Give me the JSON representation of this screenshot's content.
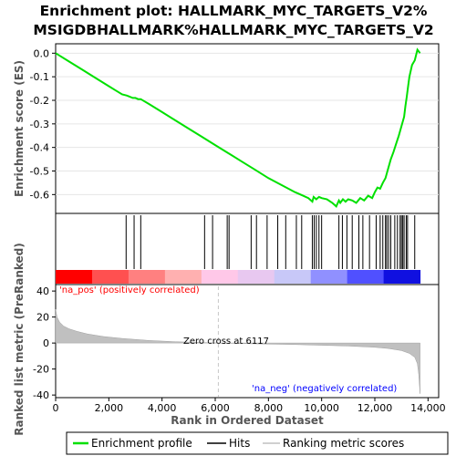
{
  "chart_data": {
    "type": "line",
    "title_line1": "Enrichment plot: HALLMARK_MYC_TARGETS_V2%",
    "title_line2": "MSIGDBHALLMARK%HALLMARK_MYC_TARGETS_V2",
    "top_panel": {
      "ylabel": "Enrichment score (ES)",
      "ylim": [
        -0.68,
        0.04
      ],
      "yticks": [
        "0.0",
        "-0.1",
        "-0.2",
        "-0.3",
        "-0.4",
        "-0.5",
        "-0.6"
      ],
      "ytick_values": [
        0.0,
        -0.1,
        -0.2,
        -0.3,
        -0.4,
        -0.5,
        -0.6
      ],
      "series": [
        {
          "name": "Enrichment profile",
          "color": "#00e000",
          "x": [
            0,
            500,
            1000,
            1500,
            2000,
            2500,
            2680,
            2900,
            3000,
            3100,
            3200,
            3500,
            4000,
            4500,
            5000,
            5500,
            6000,
            6500,
            7000,
            7500,
            8000,
            8500,
            9000,
            9300,
            9500,
            9650,
            9700,
            9800,
            9900,
            10000,
            10200,
            10400,
            10550,
            10650,
            10700,
            10800,
            10900,
            11000,
            11150,
            11300,
            11450,
            11600,
            11750,
            11900,
            12000,
            12100,
            12200,
            12300,
            12400,
            12500,
            12600,
            12700,
            12800,
            12900,
            13000,
            13100,
            13150,
            13200,
            13250,
            13300,
            13400,
            13500,
            13600,
            13700
          ],
          "y": [
            0.0,
            -0.035,
            -0.07,
            -0.105,
            -0.14,
            -0.175,
            -0.18,
            -0.19,
            -0.19,
            -0.195,
            -0.195,
            -0.215,
            -0.25,
            -0.285,
            -0.32,
            -0.355,
            -0.39,
            -0.425,
            -0.46,
            -0.495,
            -0.53,
            -0.56,
            -0.59,
            -0.605,
            -0.615,
            -0.63,
            -0.61,
            -0.62,
            -0.61,
            -0.615,
            -0.62,
            -0.635,
            -0.65,
            -0.625,
            -0.635,
            -0.62,
            -0.63,
            -0.62,
            -0.625,
            -0.635,
            -0.615,
            -0.625,
            -0.605,
            -0.615,
            -0.59,
            -0.57,
            -0.575,
            -0.55,
            -0.53,
            -0.49,
            -0.45,
            -0.42,
            -0.385,
            -0.35,
            -0.31,
            -0.27,
            -0.225,
            -0.185,
            -0.14,
            -0.1,
            -0.05,
            -0.03,
            0.015,
            0.0
          ]
        }
      ]
    },
    "hits_panel": {
      "series_name": "Hits",
      "hit_positions": [
        2650,
        2950,
        3200,
        5600,
        5900,
        6450,
        6520,
        7350,
        7550,
        7950,
        8350,
        8650,
        9050,
        9250,
        9650,
        9720,
        9800,
        9900,
        10000,
        10650,
        10780,
        10950,
        11150,
        11400,
        11550,
        11800,
        12050,
        12200,
        12300,
        12400,
        12450,
        12520,
        12600,
        12750,
        12850,
        12950,
        13000,
        13050,
        13100,
        13180,
        13230,
        13500
      ]
    },
    "gradient_bar": {
      "colors": [
        "#ff0000",
        "#ff5050",
        "#ff8080",
        "#ffb0b0",
        "#ffc8e8",
        "#e8c8f0",
        "#c8c8f8",
        "#9090ff",
        "#5050ff",
        "#1010e0"
      ]
    },
    "bottom_panel": {
      "series_name": "Ranking metric scores",
      "ylabel": "Ranked list metric (PreRanked)",
      "xlabel": "Rank in Ordered Dataset",
      "ylim": [
        -42,
        45
      ],
      "yticks": [
        "40",
        "20",
        "0",
        "-20",
        "-40"
      ],
      "ytick_values": [
        40,
        20,
        0,
        -20,
        -40
      ],
      "xlim": [
        0,
        14400
      ],
      "xticks": [
        "0",
        "2,000",
        "4,000",
        "6,000",
        "8,000",
        "10,000",
        "12,000",
        "14,000"
      ],
      "xtick_values": [
        0,
        2000,
        4000,
        6000,
        8000,
        10000,
        12000,
        14000
      ],
      "metric_x": [
        0,
        50,
        150,
        300,
        500,
        800,
        1200,
        1800,
        2500,
        3500,
        4500,
        5500,
        6117,
        7000,
        8000,
        9000,
        10000,
        11000,
        12000,
        12500,
        13000,
        13300,
        13500,
        13600,
        13650,
        13700
      ],
      "metric_y": [
        26,
        20,
        16,
        13,
        11,
        9,
        7,
        5,
        3.5,
        2,
        1,
        0.4,
        0,
        -0.4,
        -0.8,
        -1.2,
        -1.7,
        -2.3,
        -3.3,
        -4.2,
        -5.8,
        -8,
        -11,
        -16,
        -24,
        -39
      ],
      "pos_label": "'na_pos' (positively correlated)",
      "neg_label": "'na_neg' (negatively correlated)",
      "zero_cross_label": "Zero cross at 6117",
      "zero_cross": 6117
    },
    "legend": {
      "items": [
        "Enrichment profile",
        "Hits",
        "Ranking metric scores"
      ]
    },
    "colors": {
      "es_line": "#00e000",
      "hits": "#000000",
      "metric_fill": "#c0c0c0",
      "pos_text": "#ff0000",
      "neg_text": "#0000ff",
      "zero_line": "#c8c8c8"
    }
  }
}
